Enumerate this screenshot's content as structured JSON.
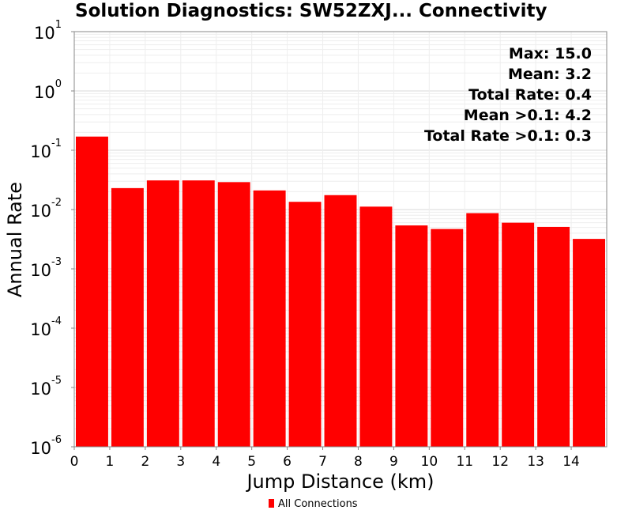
{
  "chart_data": {
    "type": "bar",
    "title": "Solution Diagnostics: SW52ZXJ... Connectivity",
    "xlabel": "Jump Distance (km)",
    "ylabel": "Annual Rate",
    "y_scale": "log",
    "ylim": [
      1e-06,
      10
    ],
    "xlim": [
      0,
      15
    ],
    "x_ticks": [
      "0",
      "1",
      "2",
      "3",
      "4",
      "5",
      "6",
      "7",
      "8",
      "9",
      "10",
      "11",
      "12",
      "13",
      "14"
    ],
    "y_ticks": [
      {
        "base": "10",
        "exp": "1",
        "value": 10
      },
      {
        "base": "10",
        "exp": "0",
        "value": 1
      },
      {
        "base": "10",
        "exp": "-1",
        "value": 0.1
      },
      {
        "base": "10",
        "exp": "-2",
        "value": 0.01
      },
      {
        "base": "10",
        "exp": "-3",
        "value": 0.001
      },
      {
        "base": "10",
        "exp": "-4",
        "value": 0.0001
      },
      {
        "base": "10",
        "exp": "-5",
        "value": 1e-05
      },
      {
        "base": "10",
        "exp": "-6",
        "value": 1e-06
      }
    ],
    "grid": true,
    "bar_color": "#ff0000",
    "series": [
      {
        "name": "All Connections",
        "bin_starts": [
          0,
          1,
          2,
          3,
          4,
          5,
          6,
          7,
          8,
          9,
          10,
          11,
          12,
          13,
          14
        ],
        "bin_width": 1,
        "values": [
          0.17,
          0.023,
          0.031,
          0.031,
          0.029,
          0.021,
          0.0135,
          0.0175,
          0.0112,
          0.0054,
          0.0047,
          0.0087,
          0.006,
          0.0051,
          0.0032
        ]
      }
    ],
    "annotations": [
      "Max: 15.0",
      "Mean: 3.2",
      "Total Rate: 0.4",
      "Mean >0.1: 4.2",
      "Total Rate >0.1: 0.3"
    ],
    "legend": {
      "position": "bottom-center",
      "label": "All Connections"
    }
  }
}
